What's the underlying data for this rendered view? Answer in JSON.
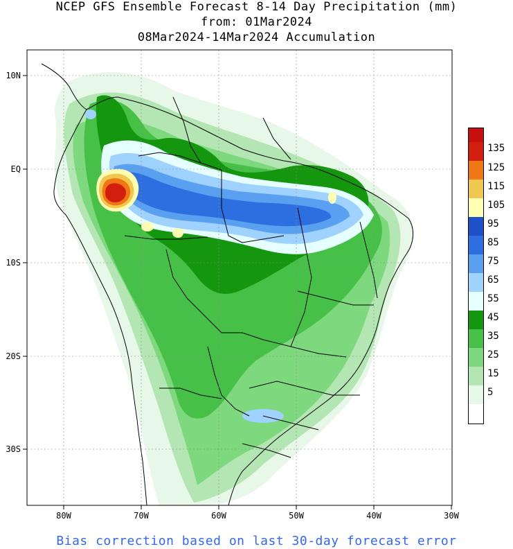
{
  "title": {
    "line1": "NCEP GFS Ensemble Forecast 8-14 Day Precipitation (mm)",
    "line2": "from: 01Mar2024",
    "line3": "08Mar2024-14Mar2024 Accumulation"
  },
  "axes": {
    "x_ticks": [
      "80W",
      "70W",
      "60W",
      "50W",
      "40W",
      "30W"
    ],
    "y_ticks": [
      "10N",
      "EQ",
      "10S",
      "20S",
      "30S"
    ]
  },
  "colorbar": {
    "labels": [
      "135",
      "125",
      "115",
      "105",
      "95",
      "85",
      "75",
      "65",
      "55",
      "45",
      "35",
      "25",
      "15",
      "5"
    ],
    "colors": [
      "#ffffff",
      "#e8f8e8",
      "#b4e6b4",
      "#7ed87e",
      "#46c046",
      "#14960f",
      "#e6ffff",
      "#a0d2ff",
      "#5aa0f0",
      "#2d6ee0",
      "#ffffb4",
      "#f0c850",
      "#f07814",
      "#d21e0f",
      "#c80f0f"
    ]
  },
  "footer": "Bias correction based on last 30-day forecast error"
}
